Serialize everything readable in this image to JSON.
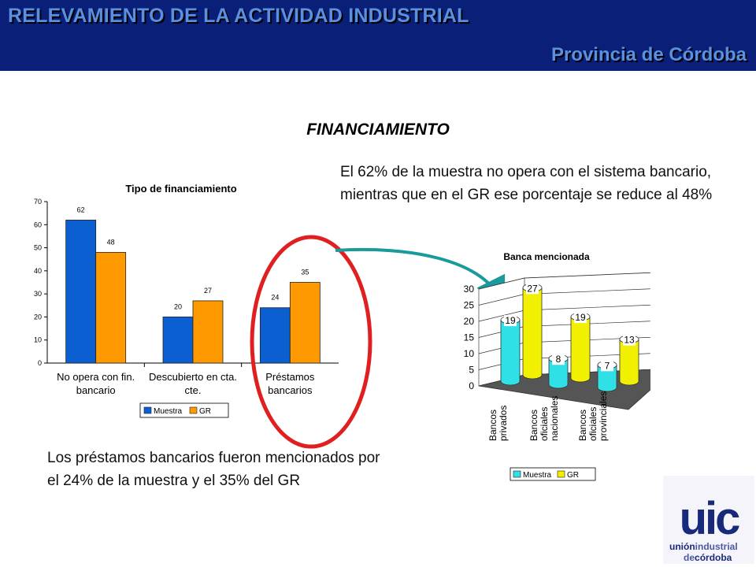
{
  "header": {
    "title": "RELEVAMIENTO DE LA ACTIVIDAD INDUSTRIAL",
    "subtitle": "Provincia de Córdoba"
  },
  "section_title": "FINANCIAMIENTO",
  "text_top": "El 62% de la muestra no opera con el sistema bancario, mientras que en el GR ese porcentaje se reduce al 48%",
  "text_bottom": "Los préstamos bancarios fueron mencionados por el 24% de la muestra y el 35% del GR",
  "logo": {
    "line1": "unión",
    "line1b": "industrial",
    "line2a": "de",
    "line2b": "córdoba",
    "mark": "uic"
  },
  "colors": {
    "header_bg": "#0a1f78",
    "header_text": "#5b8fe0",
    "muestra1": "#0b5fd0",
    "gr1": "#ff9900",
    "muestra2": "#2fe0e6",
    "gr2": "#f0f000",
    "circle": "#e02020",
    "arrow": "#1a9a9a"
  },
  "chart_data": [
    {
      "type": "bar",
      "title": "Tipo de financiamiento",
      "categories": [
        "No opera con fin. bancario",
        "Descubierto en cta. cte.",
        "Préstamos bancarios"
      ],
      "category_lines": [
        [
          "No opera con fin.",
          "bancario"
        ],
        [
          "Descubierto en cta.",
          "cte."
        ],
        [
          "Préstamos",
          "bancarios"
        ]
      ],
      "series": [
        {
          "name": "Muestra",
          "values": [
            62,
            20,
            24
          ]
        },
        {
          "name": "GR",
          "values": [
            48,
            27,
            35
          ]
        }
      ],
      "ylim": [
        0,
        70
      ],
      "yticks": [
        0,
        10,
        20,
        30,
        40,
        50,
        60,
        70
      ],
      "legend": "bottom",
      "grid": false
    },
    {
      "type": "bar",
      "style": "3d-cylinder",
      "title": "Banca mencionada",
      "categories": [
        "Bancos privados",
        "Bancos oficiales nacionales",
        "Bancos oficiales provinciales"
      ],
      "category_lines": [
        [
          "Bancos",
          "privados"
        ],
        [
          "Bancos",
          "oficiales",
          "nacionales"
        ],
        [
          "Bancos",
          "oficiales",
          "provinciales"
        ]
      ],
      "series": [
        {
          "name": "Muestra",
          "values": [
            19,
            8,
            7
          ]
        },
        {
          "name": "GR",
          "values": [
            27,
            19,
            13
          ]
        }
      ],
      "ylim": [
        0,
        30
      ],
      "yticks": [
        0,
        5,
        10,
        15,
        20,
        25,
        30
      ],
      "legend": "bottom",
      "grid": true
    }
  ]
}
